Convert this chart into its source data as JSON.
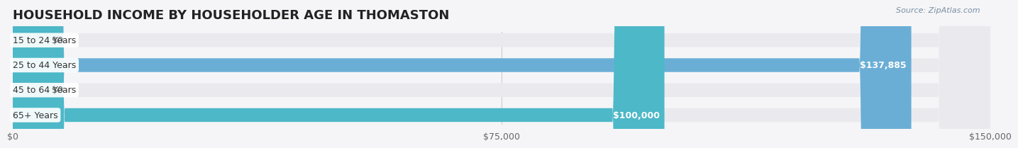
{
  "title": "HOUSEHOLD INCOME BY HOUSEHOLDER AGE IN THOMASTON",
  "source": "Source: ZipAtlas.com",
  "categories": [
    "15 to 24 Years",
    "25 to 44 Years",
    "45 to 64 Years",
    "65+ Years"
  ],
  "values": [
    0,
    137885,
    0,
    100000
  ],
  "bar_colors": [
    "#f4a0a8",
    "#6aaed6",
    "#c9a8d4",
    "#4db8c8"
  ],
  "bar_bg_colors": [
    "#f0f0f4",
    "#f0f0f4",
    "#f0f0f4",
    "#f0f0f4"
  ],
  "xlim": [
    0,
    150000
  ],
  "xticks": [
    0,
    75000,
    150000
  ],
  "xticklabels": [
    "$0",
    "$75,000",
    "$150,000"
  ],
  "value_labels": [
    "$0",
    "$137,885",
    "$0",
    "$100,000"
  ],
  "background_color": "#f5f5f8",
  "title_fontsize": 13,
  "label_fontsize": 9,
  "tick_fontsize": 9
}
